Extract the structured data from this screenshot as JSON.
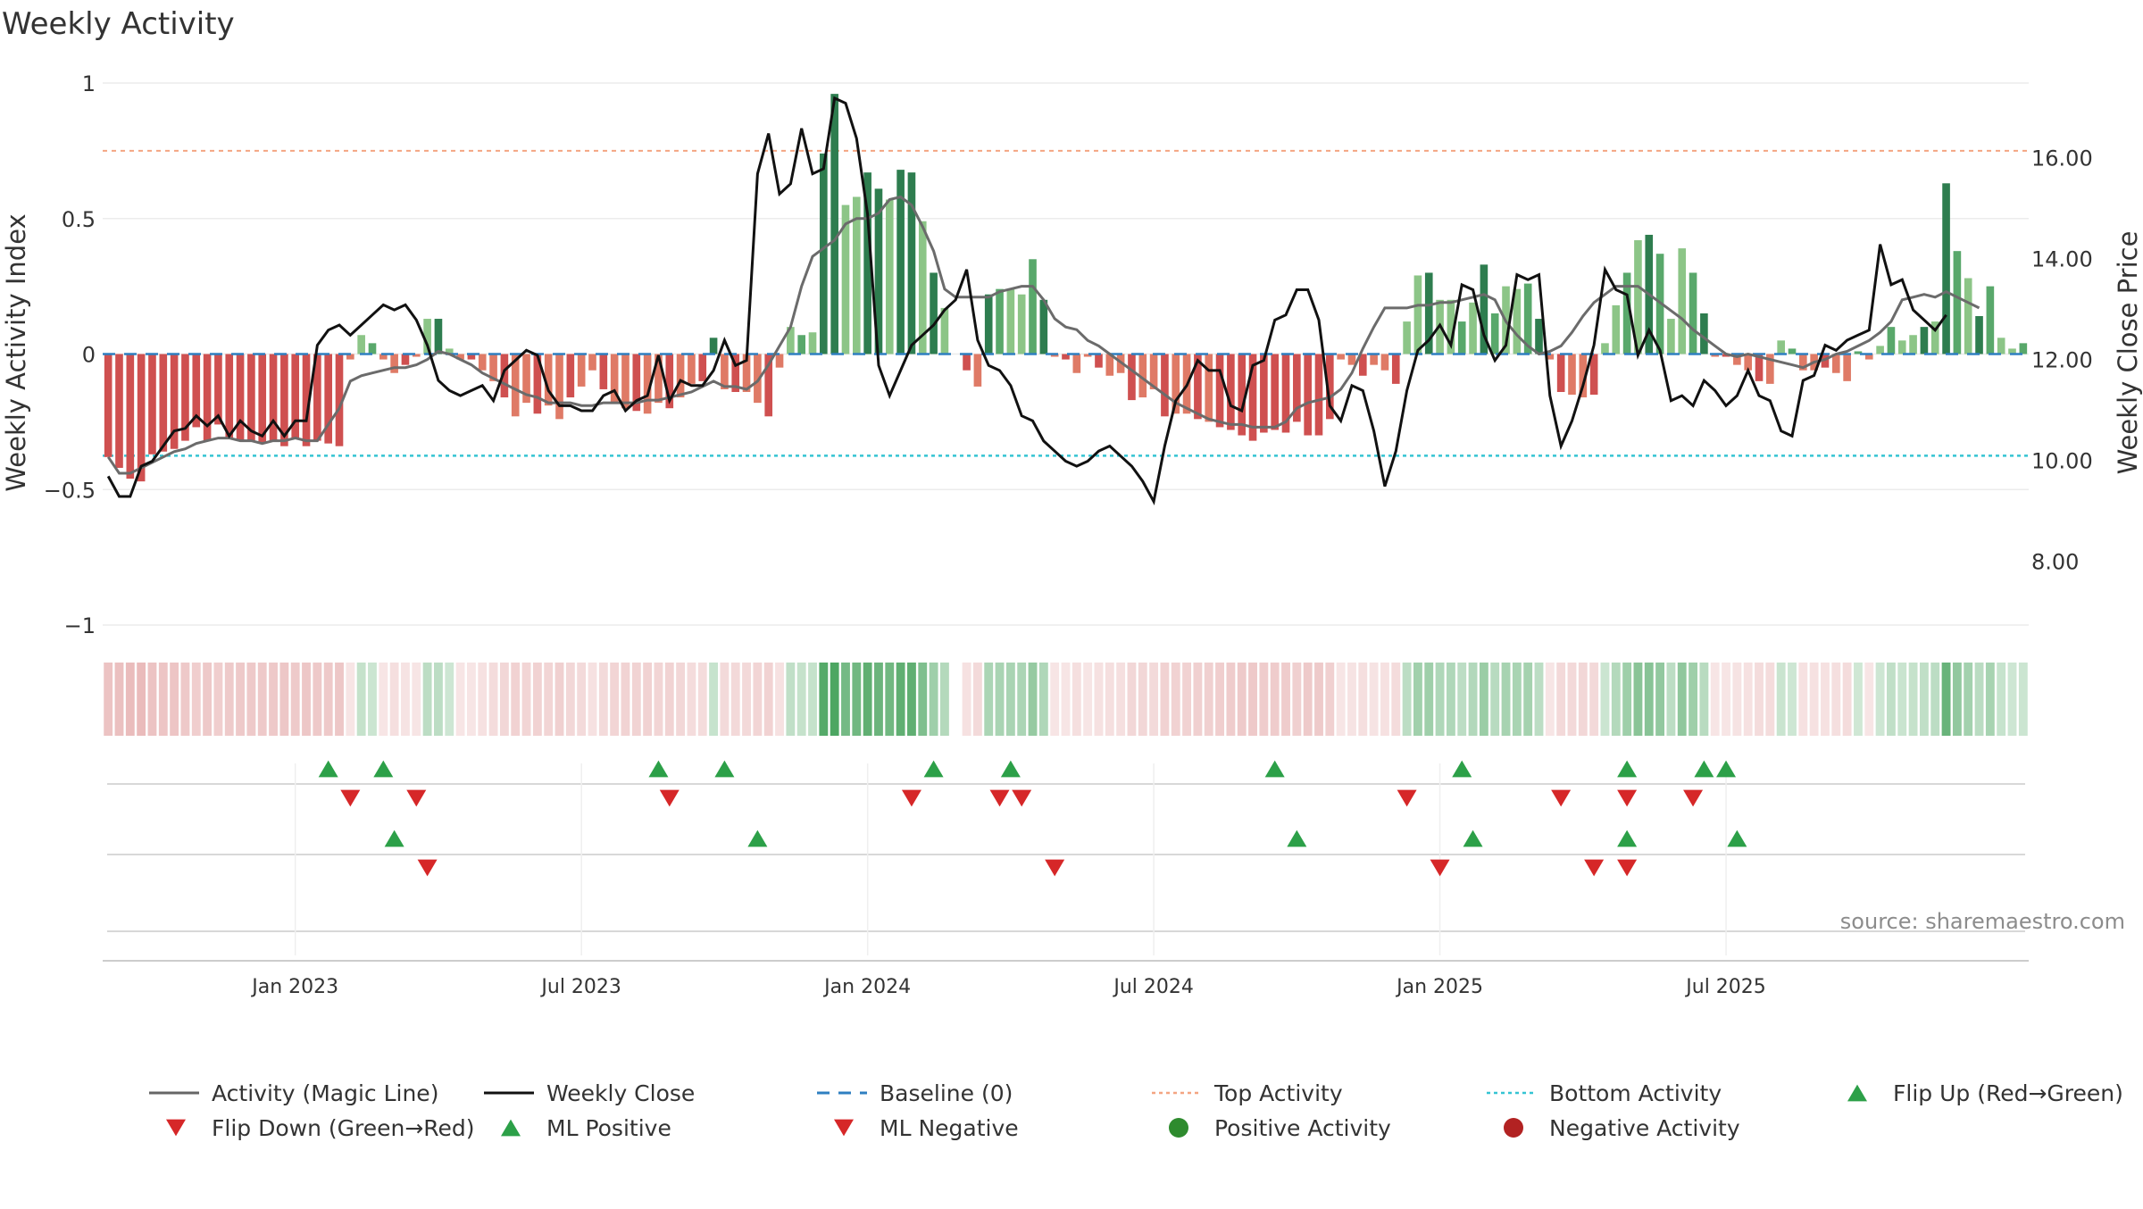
{
  "chart_data": {
    "type": "bar",
    "title": "Weekly Activity",
    "ylabel": "Weekly Activity Index",
    "ylabel_right": "Weekly Close Price",
    "ylim": [
      -1,
      1
    ],
    "ylim_right": [
      6.75,
      17.5
    ],
    "ticks_left": [
      {
        "v": 1,
        "label": "1"
      },
      {
        "v": 0.5,
        "label": "0.5"
      },
      {
        "v": 0,
        "label": "0"
      },
      {
        "v": -0.5,
        "label": "−0.5"
      },
      {
        "v": -1,
        "label": "−1"
      }
    ],
    "ticks_right": [
      {
        "v": 16,
        "label": "16.00"
      },
      {
        "v": 14,
        "label": "14.00"
      },
      {
        "v": 12,
        "label": "12.00"
      },
      {
        "v": 10,
        "label": "10.00"
      },
      {
        "v": 8,
        "label": "8.00"
      }
    ],
    "x_ticks": [
      {
        "week": 17,
        "label": "Jan 2023"
      },
      {
        "week": 43,
        "label": "Jul 2023"
      },
      {
        "week": 69,
        "label": "Jan 2024"
      },
      {
        "week": 95,
        "label": "Jul 2024"
      },
      {
        "week": 121,
        "label": "Jan 2025"
      },
      {
        "week": 147,
        "label": "Jul 2025"
      }
    ],
    "top_activity": 0.75,
    "bottom_activity": -0.375,
    "baseline": 0,
    "activity": [
      -0.38,
      -0.42,
      -0.46,
      -0.47,
      -0.37,
      -0.36,
      -0.35,
      -0.32,
      -0.27,
      -0.32,
      -0.26,
      -0.31,
      -0.32,
      -0.32,
      -0.33,
      -0.32,
      -0.34,
      -0.31,
      -0.34,
      -0.32,
      -0.33,
      -0.34,
      -0.02,
      0.07,
      0.04,
      -0.02,
      -0.07,
      -0.04,
      -0.01,
      0.13,
      0.13,
      0.02,
      -0.02,
      -0.02,
      -0.06,
      -0.1,
      -0.16,
      -0.23,
      -0.18,
      -0.22,
      -0.19,
      -0.24,
      -0.16,
      -0.12,
      -0.06,
      -0.13,
      -0.18,
      -0.2,
      -0.21,
      -0.22,
      -0.18,
      -0.2,
      -0.16,
      -0.11,
      -0.1,
      0.06,
      -0.13,
      -0.14,
      -0.14,
      -0.18,
      -0.23,
      -0.05,
      0.1,
      0.07,
      0.08,
      0.74,
      0.96,
      0.55,
      0.58,
      0.67,
      0.61,
      0.57,
      0.68,
      0.67,
      0.49,
      0.3,
      0.17,
      null,
      -0.06,
      -0.12,
      0.22,
      0.24,
      0.24,
      0.22,
      0.35,
      0.2,
      -0.01,
      -0.02,
      -0.07,
      -0.01,
      -0.05,
      -0.08,
      -0.07,
      -0.17,
      -0.16,
      -0.13,
      -0.23,
      -0.22,
      -0.22,
      -0.24,
      -0.25,
      -0.27,
      -0.28,
      -0.3,
      -0.32,
      -0.29,
      -0.28,
      -0.29,
      -0.25,
      -0.3,
      -0.3,
      -0.24,
      -0.02,
      -0.04,
      -0.08,
      -0.04,
      -0.06,
      -0.11,
      0.12,
      0.29,
      0.3,
      0.2,
      0.2,
      0.12,
      0.19,
      0.33,
      0.15,
      0.25,
      0.24,
      0.26,
      0.13,
      -0.02,
      -0.14,
      -0.15,
      -0.16,
      -0.15,
      0.04,
      0.18,
      0.3,
      0.42,
      0.44,
      0.37,
      0.13,
      0.39,
      0.3,
      0.15,
      -0.01,
      -0.01,
      -0.04,
      -0.06,
      -0.1,
      -0.11,
      0.05,
      0.02,
      -0.06,
      -0.06,
      -0.05,
      -0.07,
      -0.1,
      0.01,
      -0.02,
      0.03,
      0.1,
      0.05,
      0.07,
      0.1,
      0.12,
      0.63,
      0.38,
      0.28,
      0.14,
      0.25,
      0.06,
      0.02,
      0.04
    ],
    "weekly_close": [
      9.7,
      9.3,
      9.3,
      9.9,
      10.0,
      10.3,
      10.6,
      10.65,
      10.9,
      10.7,
      10.9,
      10.5,
      10.8,
      10.6,
      10.5,
      10.8,
      10.5,
      10.8,
      10.8,
      12.3,
      12.6,
      12.7,
      12.5,
      12.7,
      12.9,
      13.1,
      13.0,
      13.1,
      12.8,
      12.3,
      11.6,
      11.4,
      11.3,
      11.4,
      11.5,
      11.2,
      11.8,
      12.0,
      12.2,
      12.1,
      11.4,
      11.1,
      11.1,
      11.0,
      11.0,
      11.3,
      11.4,
      11.0,
      11.2,
      11.3,
      12.1,
      11.2,
      11.6,
      11.5,
      11.5,
      11.8,
      12.4,
      11.9,
      12.0,
      15.7,
      16.5,
      15.3,
      15.5,
      16.6,
      15.7,
      15.8,
      17.2,
      17.1,
      16.4,
      14.9,
      11.9,
      11.3,
      11.8,
      12.3,
      12.5,
      12.7,
      13.0,
      13.2,
      13.8,
      12.4,
      11.9,
      11.8,
      11.5,
      10.9,
      10.8,
      10.4,
      10.2,
      10.0,
      9.9,
      10.0,
      10.2,
      10.3,
      10.1,
      9.9,
      9.6,
      9.2,
      10.3,
      11.2,
      11.5,
      12.0,
      11.8,
      11.8,
      11.1,
      11.0,
      11.9,
      12.0,
      12.8,
      12.9,
      13.4,
      13.4,
      12.8,
      11.1,
      10.8,
      11.5,
      11.4,
      10.6,
      9.5,
      10.2,
      11.4,
      12.2,
      12.4,
      12.7,
      12.3,
      13.5,
      13.4,
      12.5,
      12.0,
      12.3,
      13.7,
      13.6,
      13.7,
      11.3,
      10.3,
      10.8,
      11.5,
      12.3,
      13.8,
      13.4,
      13.3,
      12.1,
      12.6,
      12.2,
      11.2,
      11.3,
      11.1,
      11.6,
      11.4,
      11.1,
      11.3,
      11.8,
      11.3,
      11.2,
      10.6,
      10.5,
      11.6,
      11.7,
      12.3,
      12.2,
      12.4,
      12.5,
      12.6,
      14.3,
      13.5,
      13.6,
      13.0,
      12.8,
      12.6,
      12.9
    ],
    "magic_line": [
      -0.38,
      -0.44,
      -0.44,
      -0.42,
      -0.4,
      -0.38,
      -0.36,
      -0.35,
      -0.33,
      -0.32,
      -0.31,
      -0.31,
      -0.32,
      -0.32,
      -0.33,
      -0.32,
      -0.32,
      -0.31,
      -0.32,
      -0.32,
      -0.26,
      -0.2,
      -0.1,
      -0.08,
      -0.07,
      -0.06,
      -0.05,
      -0.05,
      -0.04,
      -0.02,
      0.01,
      0.0,
      -0.02,
      -0.04,
      -0.07,
      -0.09,
      -0.11,
      -0.13,
      -0.15,
      -0.16,
      -0.18,
      -0.18,
      -0.18,
      -0.19,
      -0.19,
      -0.18,
      -0.18,
      -0.18,
      -0.18,
      -0.17,
      -0.17,
      -0.16,
      -0.15,
      -0.14,
      -0.12,
      -0.1,
      -0.12,
      -0.12,
      -0.13,
      -0.1,
      -0.04,
      0.03,
      0.1,
      0.25,
      0.36,
      0.39,
      0.42,
      0.48,
      0.5,
      0.5,
      0.52,
      0.57,
      0.58,
      0.55,
      0.47,
      0.38,
      0.24,
      0.21,
      0.21,
      0.21,
      0.21,
      0.23,
      0.24,
      0.25,
      0.25,
      0.2,
      0.13,
      0.1,
      0.09,
      0.05,
      0.03,
      0.0,
      -0.03,
      -0.06,
      -0.09,
      -0.12,
      -0.15,
      -0.18,
      -0.2,
      -0.22,
      -0.24,
      -0.25,
      -0.26,
      -0.26,
      -0.27,
      -0.27,
      -0.27,
      -0.25,
      -0.2,
      -0.18,
      -0.17,
      -0.16,
      -0.13,
      -0.07,
      0.02,
      0.1,
      0.17,
      0.17,
      0.17,
      0.18,
      0.18,
      0.19,
      0.19,
      0.2,
      0.21,
      0.22,
      0.2,
      0.12,
      0.07,
      0.03,
      0.0,
      0.01,
      0.03,
      0.08,
      0.14,
      0.19,
      0.22,
      0.25,
      0.25,
      0.25,
      0.22,
      0.19,
      0.16,
      0.13,
      0.09,
      0.06,
      0.03,
      0.0,
      -0.01,
      0.0,
      -0.01,
      -0.02,
      -0.03,
      -0.04,
      -0.05,
      -0.03,
      -0.02,
      0.0,
      0.01,
      0.03,
      0.05,
      0.08,
      0.12,
      0.2,
      0.21,
      0.22,
      0.21,
      0.23,
      0.21,
      0.19,
      0.17
    ],
    "flip_up_weeks": [
      20,
      25,
      50,
      56,
      75,
      82,
      106,
      123,
      138,
      145,
      147
    ],
    "flip_down_weeks": [
      22,
      28,
      51,
      73,
      81,
      83,
      118,
      132,
      138,
      144
    ],
    "ml_positive_weeks": [
      26,
      59,
      108,
      124,
      138,
      148
    ],
    "ml_negative_weeks": [
      29,
      86,
      121,
      135,
      138
    ],
    "legend": [
      {
        "label": "Activity (Magic Line)",
        "kind": "line",
        "color": "#666666"
      },
      {
        "label": "Weekly Close",
        "kind": "line",
        "color": "#111111"
      },
      {
        "label": "Baseline (0)",
        "kind": "dash",
        "color": "#2f7fc1"
      },
      {
        "label": "Top Activity",
        "kind": "dot",
        "color": "#f4a582"
      },
      {
        "label": "Bottom Activity",
        "kind": "dot",
        "color": "#35c4d3"
      },
      {
        "label": "Flip Up (Red→Green)",
        "kind": "tri-up",
        "color": "#2ca048"
      },
      {
        "label": "Flip Down (Green→Red)",
        "kind": "tri-down",
        "color": "#d62728"
      },
      {
        "label": "ML Positive",
        "kind": "tri-up",
        "color": "#2ca048"
      },
      {
        "label": "ML Negative",
        "kind": "tri-down",
        "color": "#d62728"
      },
      {
        "label": "Positive Activity",
        "kind": "circle",
        "color": "#2e8b2e"
      },
      {
        "label": "Negative Activity",
        "kind": "circle",
        "color": "#b22222"
      }
    ],
    "source": "source: sharemaestro.com",
    "colors": {
      "pos_strong": "#2e7d4f",
      "pos_mid": "#59a86b",
      "pos_light": "#8cc587",
      "neg_strong": "#cf5050",
      "neg_mid": "#df7a66",
      "neg_light": "#eca287",
      "tri_up": "#2ca048",
      "tri_down": "#d62728",
      "baseline": "#2f7fc1",
      "top": "#f4a582",
      "bottom": "#35c4d3",
      "magic": "#6b6b6b",
      "close": "#111111"
    }
  }
}
